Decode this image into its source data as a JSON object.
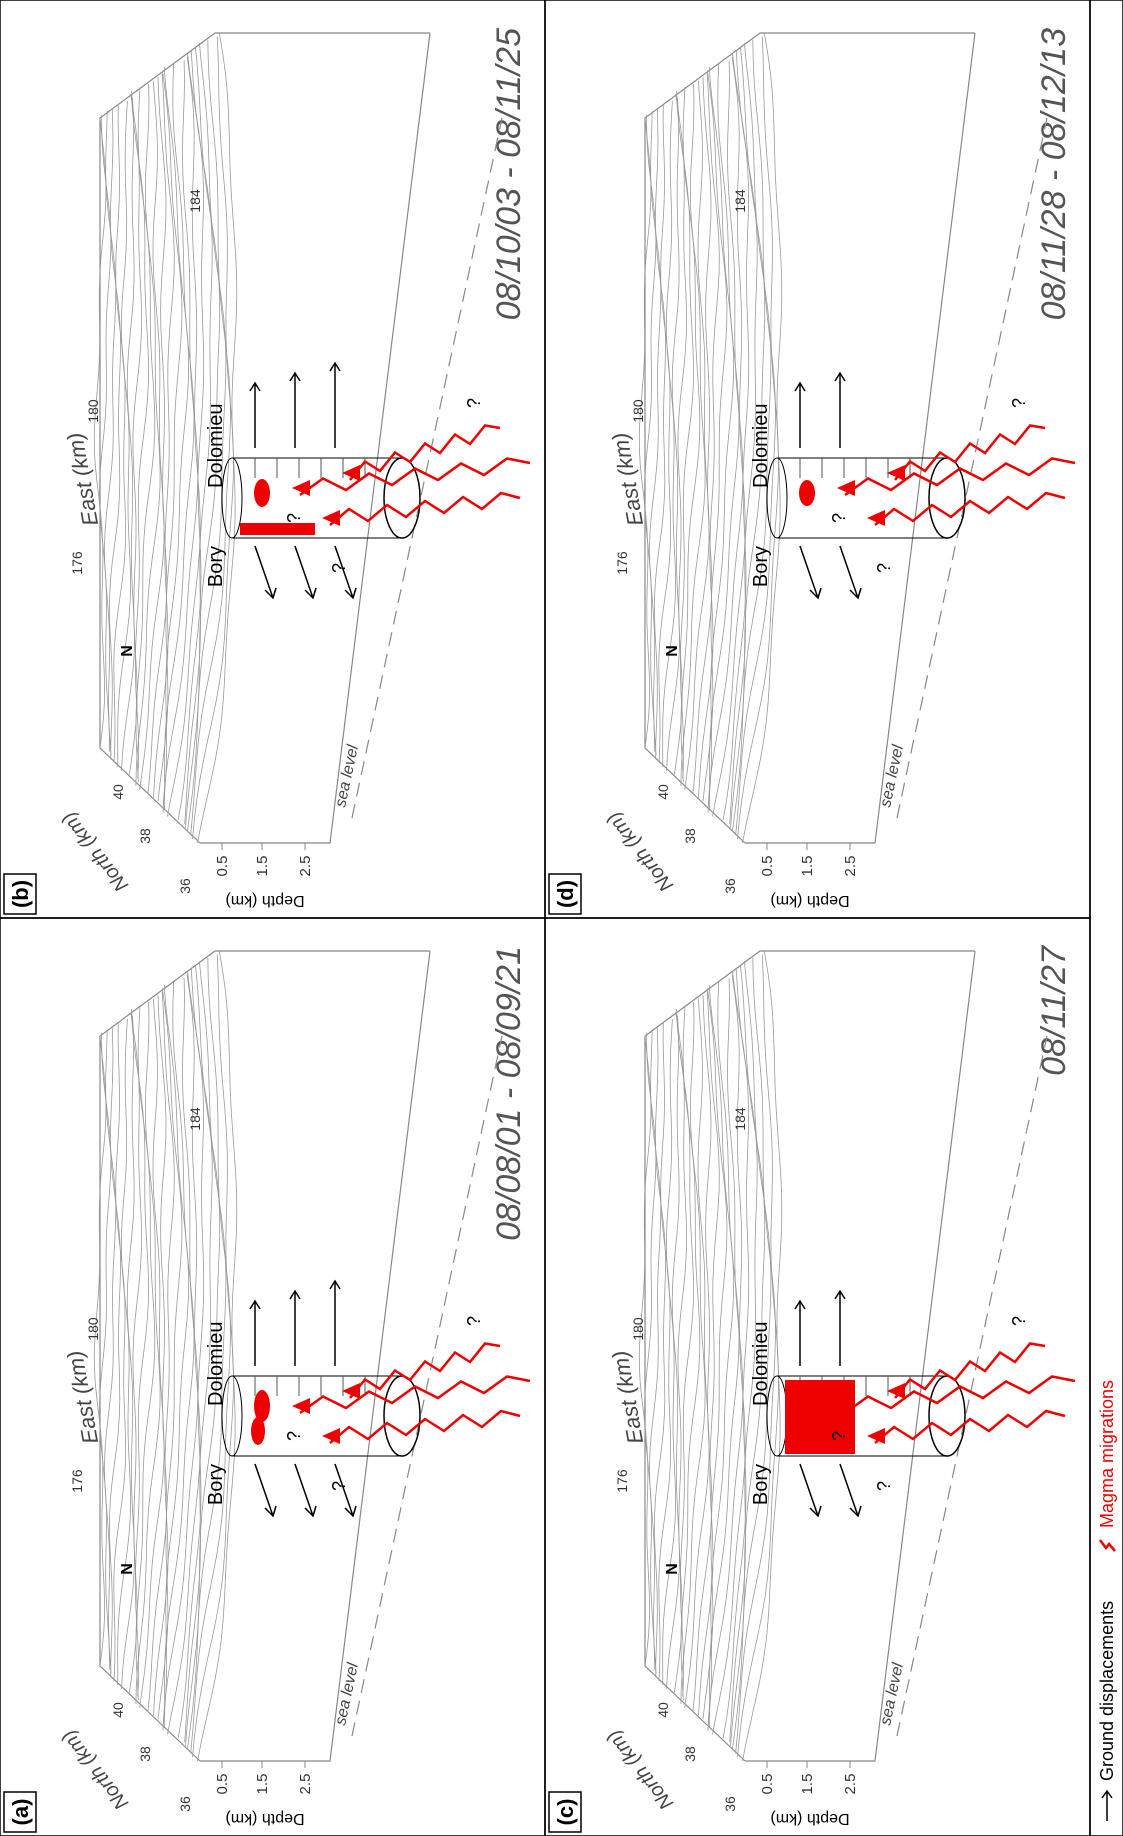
{
  "panels": [
    {
      "label": "(a)",
      "dates": "08/08/01 - 08/09/21"
    },
    {
      "label": "(b)",
      "dates": "08/10/03 - 08/11/25"
    },
    {
      "label": "(c)",
      "dates": "08/11/27"
    },
    {
      "label": "(d)",
      "dates": "08/11/28 - 08/12/13"
    }
  ],
  "axes": {
    "depth_label": "Depth (km)",
    "depth_ticks": [
      "0.5",
      "1.5",
      "2.5"
    ],
    "north_label": "North (km)",
    "north_ticks": [
      "36",
      "38",
      "40"
    ],
    "east_label": "East (km)",
    "east_ticks": [
      "176",
      "180",
      "184"
    ],
    "sea_level": "sea level",
    "north_arrow": "N"
  },
  "places": {
    "bory": "Bory",
    "dolomieu": "Dolomieu"
  },
  "question_mark": "?",
  "legend": {
    "ground": "Ground displacements",
    "magma": "Magma migrations"
  }
}
